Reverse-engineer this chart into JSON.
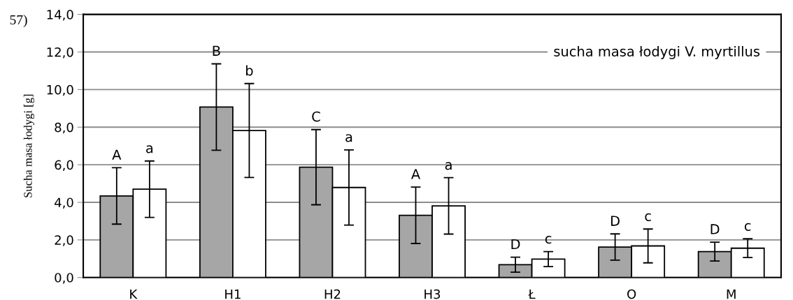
{
  "chart_data": {
    "type": "bar",
    "ylabel": "Sucha masa łodygi [g]",
    "annotations": [
      "57)",
      "sucha masa łodygi V. myrtillus",
      "A",
      "a",
      "B",
      "b",
      "C",
      "a",
      "A",
      "a",
      "D",
      "c",
      "D",
      "c",
      "D",
      "c"
    ],
    "categories": [
      "K",
      "H1",
      "H2",
      "H3",
      "Ł",
      "O",
      "M"
    ],
    "series": [
      {
        "color": "#a6a6a6",
        "values": [
          4.34,
          9.07,
          5.87,
          3.31,
          0.68,
          1.62,
          1.38
        ],
        "errors": [
          1.5,
          2.3,
          2.0,
          1.5,
          0.4,
          0.7,
          0.5
        ]
      },
      {
        "color": "#ffffff",
        "values": [
          4.7,
          7.82,
          4.79,
          3.81,
          0.98,
          1.68,
          1.56
        ],
        "errors": [
          1.5,
          2.5,
          2.0,
          1.5,
          0.4,
          0.9,
          0.5
        ]
      }
    ],
    "ylim": [
      0,
      14
    ],
    "yticks": [
      {
        "value": 0,
        "label": "0,0"
      },
      {
        "value": 2,
        "label": "2,0"
      },
      {
        "value": 4,
        "label": "4,0"
      },
      {
        "value": 6,
        "label": "6,0"
      },
      {
        "value": 8,
        "label": "8,0"
      },
      {
        "value": 10,
        "label": "10,0"
      },
      {
        "value": 12,
        "label": "12,0"
      },
      {
        "value": 14,
        "label": "14,0"
      }
    ],
    "grid": "y",
    "legend": false
  }
}
